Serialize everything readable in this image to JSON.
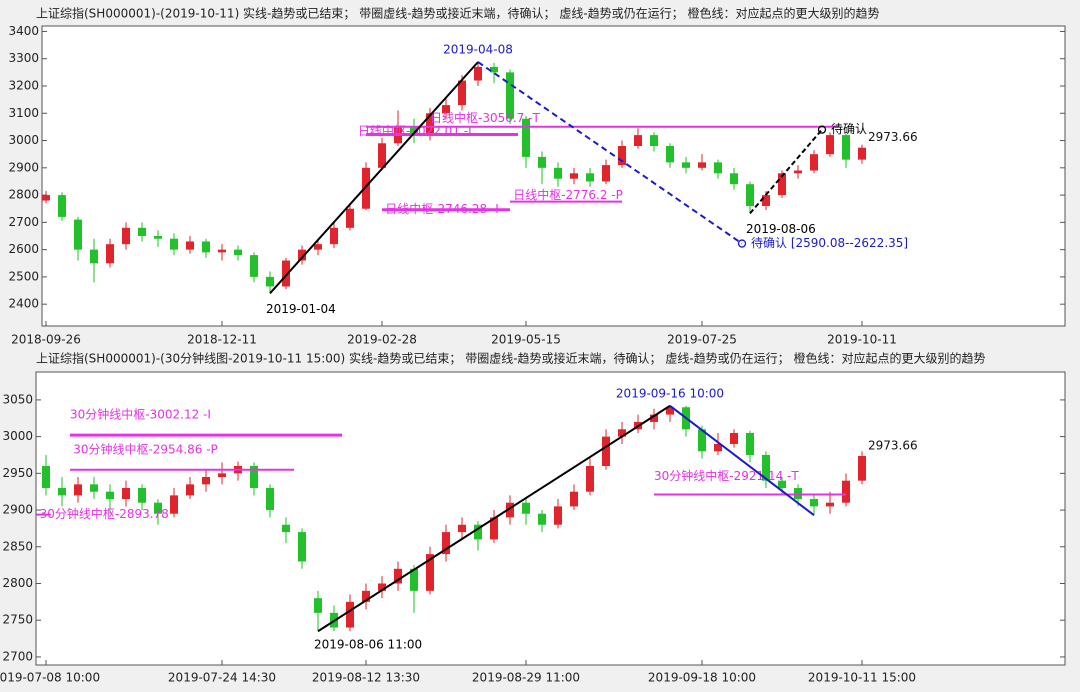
{
  "chart_data": [
    {
      "type": "candlestick",
      "title": "上证综指(SH000001)-(2019-10-11)  实线-趋势或已结束；  带圈虚线-趋势或接近末端，待确认；  虚线-趋势或仍在运行；  橙色线：对应起点的更大级别的趋势",
      "categories": [
        "2018-09-26",
        null,
        null,
        null,
        null,
        null,
        null,
        null,
        null,
        null,
        null,
        "2018-12-11",
        null,
        null,
        null,
        null,
        null,
        null,
        null,
        null,
        null,
        "2019-02-28",
        null,
        null,
        null,
        null,
        null,
        null,
        null,
        null,
        "2019-05-15",
        null,
        null,
        null,
        null,
        null,
        null,
        null,
        null,
        null,
        null,
        "2019-07-25",
        null,
        null,
        null,
        null,
        null,
        null,
        null,
        null,
        null,
        "2019-10-11",
        null,
        null,
        null,
        null,
        null,
        null,
        null,
        null,
        null,
        null,
        null,
        null,
        null
      ],
      "open": [
        2780,
        2800,
        2710,
        2600,
        2550,
        2620,
        2680,
        2650,
        2640,
        2600,
        2630,
        2590,
        2600,
        2580,
        2500,
        2465,
        2560,
        2600,
        2620,
        2680,
        2750,
        2900,
        2990,
        3050,
        3020,
        3100,
        3130,
        3220,
        3270,
        3250,
        3080,
        2940,
        2900,
        2860,
        2880,
        2850,
        2910,
        2980,
        3020,
        2980,
        2920,
        2900,
        2920,
        2880,
        2840,
        2760,
        2800,
        2880,
        2890,
        2950,
        3020,
        2930,
        null,
        null,
        null,
        null,
        null,
        null,
        null,
        null,
        null,
        null,
        null,
        null,
        null
      ],
      "high": [
        2815,
        2810,
        2720,
        2640,
        2640,
        2700,
        2700,
        2670,
        2660,
        2650,
        2640,
        2620,
        2615,
        2590,
        2520,
        2570,
        2615,
        2640,
        2700,
        2770,
        2920,
        3010,
        3110,
        3080,
        3120,
        3160,
        3240,
        3288,
        3285,
        3260,
        3090,
        2960,
        2920,
        2900,
        2900,
        2930,
        3000,
        3045,
        3030,
        2990,
        2940,
        2950,
        2930,
        2900,
        2850,
        2815,
        2890,
        2910,
        2965,
        3030,
        3025,
        2985,
        null,
        null,
        null,
        null,
        null,
        null,
        null,
        null,
        null,
        null,
        null,
        null,
        null
      ],
      "low": [
        2770,
        2705,
        2560,
        2480,
        2535,
        2600,
        2630,
        2610,
        2580,
        2585,
        2570,
        2560,
        2560,
        2480,
        2440,
        2455,
        2545,
        2580,
        2605,
        2670,
        2745,
        2890,
        2980,
        2990,
        3000,
        3080,
        3110,
        3200,
        3210,
        3060,
        2900,
        2840,
        2830,
        2840,
        2830,
        2840,
        2900,
        2970,
        2960,
        2900,
        2880,
        2890,
        2860,
        2820,
        2733,
        2745,
        2790,
        2860,
        2880,
        2940,
        2900,
        2915,
        null,
        null,
        null,
        null,
        null,
        null,
        null,
        null,
        null,
        null,
        null,
        null,
        null
      ],
      "close": [
        2800,
        2720,
        2600,
        2550,
        2620,
        2680,
        2650,
        2640,
        2600,
        2630,
        2590,
        2600,
        2580,
        2500,
        2465,
        2560,
        2600,
        2620,
        2680,
        2750,
        2900,
        2990,
        3050,
        3020,
        3100,
        3130,
        3220,
        3270,
        3250,
        3080,
        2940,
        2900,
        2860,
        2880,
        2850,
        2910,
        2980,
        3020,
        2980,
        2920,
        2900,
        2920,
        2880,
        2840,
        2760,
        2800,
        2880,
        2890,
        2950,
        3020,
        2930,
        2973.66,
        null,
        null,
        null,
        null,
        null,
        null,
        null,
        null,
        null,
        null,
        null,
        null,
        null
      ],
      "up_color": "#e0242b",
      "down_color": "#22c02a",
      "level_color": "#e632e6",
      "ylim": [
        2320,
        3420
      ],
      "yticks": [
        2400,
        2500,
        2600,
        2700,
        2800,
        2900,
        3000,
        3100,
        3200,
        3300,
        3400
      ],
      "levels": [
        {
          "label": "日线中枢-3022.01 -I",
          "value": 3022.01
        },
        {
          "label": "日线中枢-3050.7 -T",
          "value": 3050.7
        },
        {
          "label": "日线中枢-2746.28 -I",
          "value": 2746.28
        },
        {
          "label": "日线中枢-2776.2 -P",
          "value": 2776.2
        }
      ],
      "pivots": [
        {
          "label": "2019-01-04",
          "color": "#000000"
        },
        {
          "label": "2019-04-08",
          "color": "#1a1ad0"
        },
        {
          "label": "2019-08-06",
          "color": "#000000"
        }
      ],
      "notes": [
        {
          "text": "待确认",
          "value": 3040,
          "color": "#000000"
        },
        {
          "text": "待确认 [2590.08--2622.35]",
          "value": 2622.35,
          "color": "#1a1ad0"
        }
      ]
    },
    {
      "type": "candlestick",
      "title": "上证综指(SH000001)-(30分钟线图-2019-10-11 15:00)  实线-趋势或已结束；  带圈虚线-趋势或接近末端，待确认；  虚线-趋势或仍在运行；  橙色线：对应起点的更大级别的趋势",
      "categories": [
        "2019-07-08 10:00",
        null,
        null,
        null,
        null,
        null,
        null,
        null,
        null,
        null,
        null,
        "2019-07-24 14:30",
        null,
        null,
        null,
        null,
        null,
        null,
        null,
        null,
        "2019-08-12 13:30",
        null,
        null,
        null,
        null,
        null,
        null,
        null,
        null,
        null,
        "2019-08-29 11:00",
        null,
        null,
        null,
        null,
        null,
        null,
        null,
        null,
        null,
        null,
        "2019-09-18 10:00",
        null,
        null,
        null,
        null,
        null,
        null,
        null,
        null,
        null,
        "2019-10-11 15:00",
        null,
        null,
        null,
        null,
        null,
        null,
        null,
        null,
        null,
        null,
        null,
        null,
        null
      ],
      "open": [
        2960,
        2930,
        2920,
        2935,
        2925,
        2915,
        2930,
        2910,
        2895,
        2920,
        2935,
        2945,
        2950,
        2960,
        2930,
        2880,
        2870,
        2780,
        2760,
        2740,
        2775,
        2790,
        2800,
        2820,
        2790,
        2840,
        2870,
        2880,
        2860,
        2890,
        2910,
        2895,
        2880,
        2905,
        2925,
        2960,
        3000,
        3010,
        3020,
        3030,
        3040,
        3010,
        2980,
        2990,
        3005,
        2975,
        2940,
        2930,
        2915,
        2905,
        2910,
        2940,
        null,
        null,
        null,
        null,
        null,
        null,
        null,
        null,
        null,
        null,
        null,
        null,
        null
      ],
      "high": [
        2975,
        2945,
        2945,
        2945,
        2935,
        2940,
        2935,
        2915,
        2930,
        2945,
        2955,
        2965,
        2966,
        2965,
        2935,
        2890,
        2875,
        2790,
        2770,
        2785,
        2800,
        2810,
        2830,
        2825,
        2850,
        2880,
        2890,
        2885,
        2900,
        2920,
        2915,
        2900,
        2915,
        2935,
        2970,
        3010,
        3020,
        3030,
        3038,
        3042,
        3042,
        3015,
        3005,
        3010,
        3008,
        2980,
        2945,
        2935,
        2920,
        2925,
        2950,
        2980,
        null,
        null,
        null,
        null,
        null,
        null,
        null,
        null,
        null,
        null,
        null,
        null,
        null
      ],
      "low": [
        2920,
        2905,
        2910,
        2915,
        2895,
        2905,
        2900,
        2880,
        2890,
        2915,
        2925,
        2935,
        2940,
        2920,
        2890,
        2855,
        2820,
        2735,
        2735,
        2735,
        2765,
        2780,
        2790,
        2760,
        2785,
        2830,
        2860,
        2845,
        2855,
        2880,
        2880,
        2870,
        2875,
        2900,
        2920,
        2955,
        2990,
        3005,
        3010,
        3020,
        3000,
        2970,
        2975,
        2985,
        2965,
        2930,
        2920,
        2905,
        2893,
        2895,
        2905,
        2935,
        null,
        null,
        null,
        null,
        null,
        null,
        null,
        null,
        null,
        null,
        null,
        null,
        null
      ],
      "close": [
        2930,
        2920,
        2935,
        2925,
        2915,
        2930,
        2910,
        2895,
        2920,
        2935,
        2945,
        2950,
        2960,
        2930,
        2900,
        2870,
        2830,
        2760,
        2740,
        2775,
        2790,
        2800,
        2820,
        2790,
        2840,
        2870,
        2880,
        2860,
        2890,
        2910,
        2895,
        2880,
        2905,
        2925,
        2960,
        3000,
        3010,
        3020,
        3030,
        3040,
        3010,
        2980,
        2990,
        3005,
        2975,
        2940,
        2930,
        2915,
        2905,
        2910,
        2940,
        2973.66,
        null,
        null,
        null,
        null,
        null,
        null,
        null,
        null,
        null,
        null,
        null,
        null,
        null
      ],
      "up_color": "#e0242b",
      "down_color": "#22c02a",
      "level_color": "#e632e6",
      "ylim": [
        2689,
        3088
      ],
      "yticks": [
        2700,
        2750,
        2800,
        2850,
        2900,
        2950,
        3000,
        3050
      ],
      "levels": [
        {
          "label": "30分钟线中枢-3002.12 -I",
          "value": 3002.12
        },
        {
          "label": "30分钟线中枢-2954.86 -P",
          "value": 2954.86
        },
        {
          "label": "30分钟线中枢-2893.78",
          "value": 2893.78
        },
        {
          "label": "30分钟线中枢-2921.14 -T",
          "value": 2921.14
        }
      ],
      "pivots": [
        {
          "label": "2019-09-16 10:00",
          "color": "#1a1ad0"
        },
        {
          "label": "2019-08-06 11:00",
          "color": "#000000"
        }
      ],
      "notes": []
    }
  ]
}
